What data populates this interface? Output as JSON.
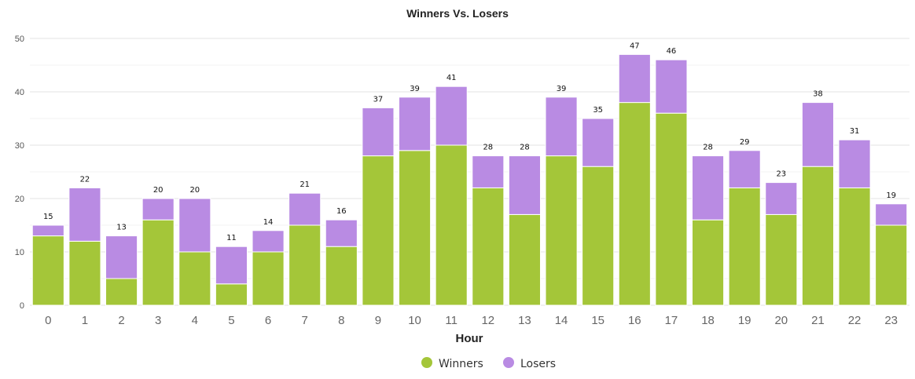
{
  "chart_data": {
    "type": "bar",
    "stacked": true,
    "title": "Winners Vs. Losers",
    "xlabel": "Hour",
    "ylabel": "",
    "ylim": [
      0,
      50
    ],
    "y_ticks": [
      "0",
      "10",
      "20",
      "30",
      "40",
      "50"
    ],
    "grid": true,
    "legend_position": "bottom-center",
    "categories": [
      "0",
      "1",
      "2",
      "3",
      "4",
      "5",
      "6",
      "7",
      "8",
      "9",
      "10",
      "11",
      "12",
      "13",
      "14",
      "15",
      "16",
      "17",
      "18",
      "19",
      "20",
      "21",
      "22",
      "23"
    ],
    "series": [
      {
        "name": "Winners",
        "color": "#a4c639",
        "values": [
          13,
          12,
          5,
          16,
          10,
          4,
          10,
          15,
          11,
          28,
          29,
          30,
          22,
          17,
          28,
          26,
          38,
          36,
          16,
          22,
          17,
          26,
          22,
          15
        ]
      },
      {
        "name": "Losers",
        "color": "#b98be3",
        "values": [
          2,
          10,
          8,
          4,
          10,
          7,
          4,
          6,
          5,
          9,
          10,
          11,
          6,
          11,
          11,
          9,
          9,
          10,
          12,
          7,
          6,
          12,
          9,
          4
        ]
      }
    ],
    "totals": [
      "15",
      "22",
      "13",
      "20",
      "20",
      "11",
      "14",
      "21",
      "16",
      "37",
      "39",
      "41",
      "28",
      "28",
      "39",
      "35",
      "47",
      "46",
      "28",
      "29",
      "23",
      "38",
      "31",
      "19"
    ]
  }
}
